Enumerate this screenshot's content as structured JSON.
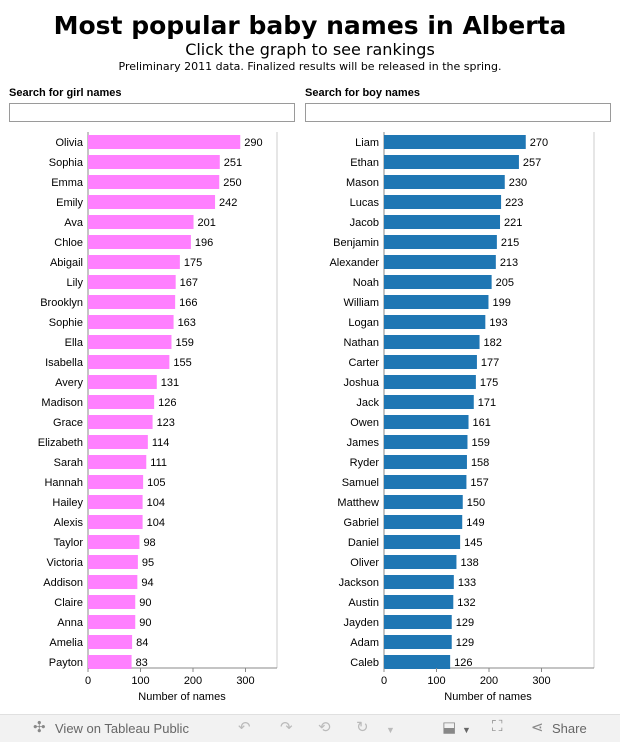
{
  "header": {
    "title": "Most popular baby names in Alberta",
    "subtitle": "Click the graph to see rankings",
    "note": "Preliminary 2011 data. Finalized results will be released in the spring."
  },
  "search": {
    "girl_label": "Search for girl names",
    "boy_label": "Search for boy names",
    "girl_value": "",
    "boy_value": ""
  },
  "colors": {
    "girl": "#ff80ff",
    "boy": "#1f77b4",
    "axis": "#888888"
  },
  "chart_data": [
    {
      "type": "bar",
      "orientation": "horizontal",
      "series": [
        {
          "name": "",
          "color": "#ff80ff"
        }
      ],
      "categories": [
        "Olivia",
        "Sophia",
        "Emma",
        "Emily",
        "Ava",
        "Chloe",
        "Abigail",
        "Lily",
        "Brooklyn",
        "Sophie",
        "Ella",
        "Isabella",
        "Avery",
        "Madison",
        "Grace",
        "Elizabeth",
        "Sarah",
        "Hannah",
        "Hailey",
        "Alexis",
        "Taylor",
        "Victoria",
        "Addison",
        "Claire",
        "Anna",
        "Amelia",
        "Payton"
      ],
      "values": [
        290,
        251,
        250,
        242,
        201,
        196,
        175,
        167,
        166,
        163,
        159,
        155,
        131,
        126,
        123,
        114,
        111,
        105,
        104,
        104,
        98,
        95,
        94,
        90,
        90,
        84,
        83
      ],
      "xlabel": "Number of names",
      "xlim": [
        0,
        340
      ],
      "xticks": [
        0,
        100,
        200,
        300
      ],
      "grid": false
    },
    {
      "type": "bar",
      "orientation": "horizontal",
      "series": [
        {
          "name": "",
          "color": "#1f77b4"
        }
      ],
      "categories": [
        "Liam",
        "Ethan",
        "Mason",
        "Lucas",
        "Jacob",
        "Benjamin",
        "Alexander",
        "Noah",
        "William",
        "Logan",
        "Nathan",
        "Carter",
        "Joshua",
        "Jack",
        "Owen",
        "James",
        "Ryder",
        "Samuel",
        "Matthew",
        "Gabriel",
        "Daniel",
        "Oliver",
        "Jackson",
        "Austin",
        "Jayden",
        "Adam",
        "Caleb"
      ],
      "values": [
        270,
        257,
        230,
        223,
        221,
        215,
        213,
        205,
        199,
        193,
        182,
        177,
        175,
        171,
        161,
        159,
        158,
        157,
        150,
        149,
        145,
        138,
        133,
        132,
        129,
        129,
        126
      ],
      "xlabel": "Number of names",
      "xlim": [
        0,
        400
      ],
      "xticks": [
        0,
        100,
        200,
        300
      ],
      "grid": false
    }
  ],
  "toolbar": {
    "view_label": "View on Tableau Public",
    "share_label": "Share",
    "icons": [
      "tableau-logo-icon",
      "undo-icon",
      "redo-icon",
      "revert-icon",
      "dropdown-icon",
      "download-icon",
      "fullscreen-icon",
      "share-icon"
    ]
  }
}
